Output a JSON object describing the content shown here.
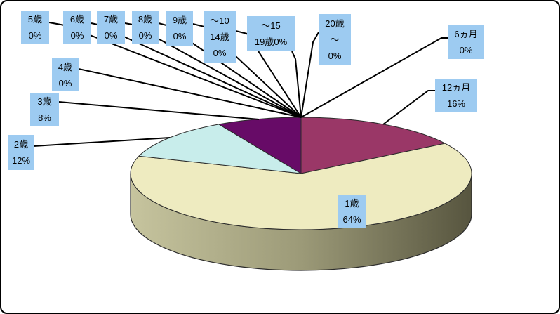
{
  "chart_data": {
    "type": "pie",
    "style": "3d-pie",
    "title": "",
    "unit": "%",
    "legend": "none",
    "categories": [
      "6ヵ月",
      "12ヵ月",
      "1歳",
      "2歳",
      "3歳",
      "4歳",
      "5歳",
      "6歳",
      "7歳",
      "8歳",
      "9歳",
      "～10 14歳",
      "～15 19歳",
      "20歳～"
    ],
    "values": [
      0,
      16,
      64,
      12,
      8,
      0,
      0,
      0,
      0,
      0,
      0,
      0,
      0,
      0
    ],
    "start_angle_deg": 0,
    "direction": "clockwise",
    "colors": {
      "12ヵ月": "#9A3767",
      "1歳": "#EEEBC0",
      "2歳": "#C8EDEB",
      "3歳": "#670B67",
      "label_bg": "#9DCBF1",
      "leader_line": "#000000",
      "slice_outline": "#2B2B2B",
      "side_light": "#C6C49E",
      "side_mid": "#9C9A78",
      "side_dark": "#57553F"
    },
    "labels": [
      {
        "id": "6m",
        "category": "6ヵ月",
        "lines": [
          "6ヵ月",
          "0%"
        ]
      },
      {
        "id": "12m",
        "category": "12ヵ月",
        "lines": [
          "12ヵ月",
          "16%"
        ]
      },
      {
        "id": "1y",
        "category": "1歳",
        "lines": [
          "1歳",
          "64%"
        ]
      },
      {
        "id": "2y",
        "category": "2歳",
        "lines": [
          "2歳",
          "12%"
        ]
      },
      {
        "id": "3y",
        "category": "3歳",
        "lines": [
          "3歳",
          "8%"
        ]
      },
      {
        "id": "4y",
        "category": "4歳",
        "lines": [
          "4歳",
          "0%"
        ]
      },
      {
        "id": "5y",
        "category": "5歳",
        "lines": [
          "5歳",
          "0%"
        ]
      },
      {
        "id": "6y",
        "category": "6歳",
        "lines": [
          "6歳",
          "0%"
        ]
      },
      {
        "id": "7y",
        "category": "7歳",
        "lines": [
          "7歳",
          "0%"
        ]
      },
      {
        "id": "8y",
        "category": "8歳",
        "lines": [
          "8歳",
          "0%"
        ]
      },
      {
        "id": "9y",
        "category": "9歳",
        "lines": [
          "9歳",
          "0%"
        ]
      },
      {
        "id": "10_14",
        "category": "～10 14歳",
        "lines": [
          "～10",
          "14歳",
          "0%"
        ]
      },
      {
        "id": "15_19",
        "category": "～15 19歳",
        "lines": [
          "～15",
          "19歳0%"
        ]
      },
      {
        "id": "20plus",
        "category": "20歳～",
        "lines": [
          "20歳",
          "～",
          "0%"
        ]
      }
    ]
  }
}
